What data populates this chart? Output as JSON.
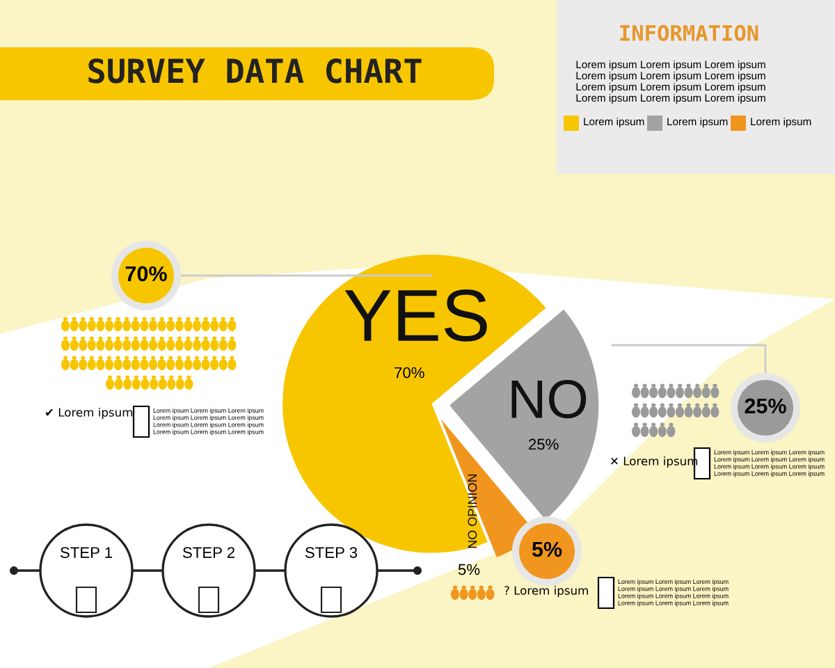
{
  "chart_data": {
    "type": "pie",
    "title": "SURVEY DATA CHART",
    "categories": [
      "YES",
      "NO",
      "NO OPINION"
    ],
    "values": [
      70,
      25,
      5
    ],
    "colors": [
      "#f7c600",
      "#a3a3a3",
      "#f0961e"
    ],
    "value_labels": [
      "70%",
      "25%",
      "5%"
    ],
    "annotations": [
      "INFORMATION",
      "Lorem ipsum Lorem ipsum Lorem ipsum",
      "Lorem ipsum Lorem ipsum Lorem ipsum",
      "Lorem ipsum Lorem ipsum Lorem ipsum",
      "Lorem ipsum Lorem ipsum Lorem ipsum",
      "Lorem ipsum",
      "Lorem ipsum",
      "Lorem ipsum",
      "70%",
      "25%",
      "5%",
      "✔ Lorem ipsum",
      "✕ Lorem ipsum",
      "? Lorem ipsum",
      "STEP 1",
      "STEP 2",
      "STEP 3",
      "Lorem ipsum Lorem ipsum Lorem ipsum\nLorem ipsum Lorem ipsum Lorem ipsum\nLorem ipsum Lorem ipsum Lorem ipsum\nLorem ipsum Lorem ipsum Lorem ipsum",
      "Lorem ipsum Lorem ipsum Lorem ipsum\nLorem ipsum Lorem ipsum Lorem ipsum\nLorem ipsum Lorem ipsum Lorem ipsum\nLorem ipsum Lorem ipsum Lorem ipsum",
      "Lorem ipsum Lorem ipsum Lorem ipsum\nLorem ipsum Lorem ipsum Lorem ipsum\nLorem ipsum Lorem ipsum Lorem ipsum\nLorem ipsum Lorem ipsum Lorem ipsum"
    ]
  }
}
